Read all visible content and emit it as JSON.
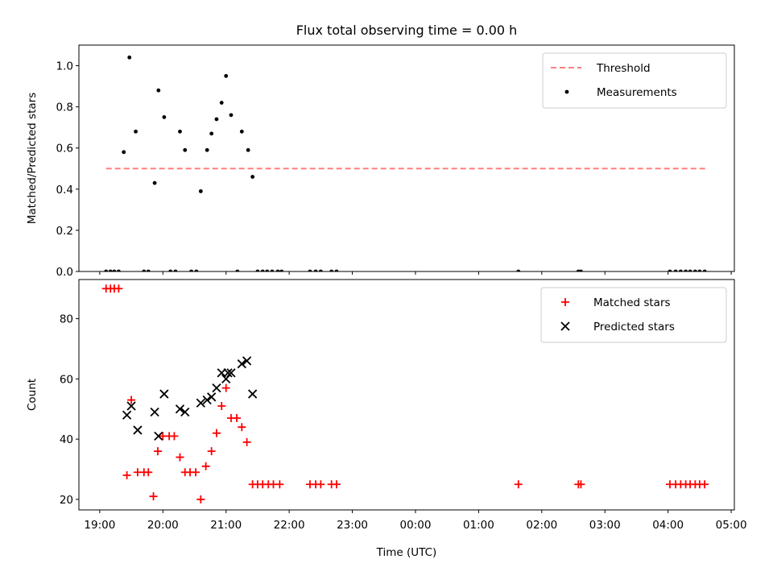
{
  "chart_data": {
    "type": "scatter",
    "title": "Flux total observing time = 0.00 h",
    "xlabel": "Time (UTC)",
    "x_tick_labels": [
      "19:00",
      "20:00",
      "21:00",
      "22:00",
      "23:00",
      "00:00",
      "01:00",
      "02:00",
      "03:00",
      "04:00",
      "05:00"
    ],
    "x_ticks_hours": [
      19,
      20,
      21,
      22,
      23,
      24,
      25,
      26,
      27,
      28,
      29
    ],
    "xlim_hours": [
      18.67,
      29.05
    ],
    "panels": [
      {
        "ylabel": "Matched/Predicted stars",
        "ylim": [
          0,
          1.1
        ],
        "yticks": [
          0.0,
          0.2,
          0.4,
          0.6,
          0.8,
          1.0
        ],
        "ytick_labels": [
          "0.0",
          "0.2",
          "0.4",
          "0.6",
          "0.8",
          "1.0"
        ],
        "legend_position": "upper right",
        "threshold": {
          "name": "Threshold",
          "value": 0.5,
          "x_range": [
            19.1,
            28.6
          ],
          "color": "#ff7f7f",
          "style": "dashed"
        },
        "series": [
          {
            "name": "Measurements",
            "marker": "dot",
            "color": "#000000",
            "points": [
              [
                19.1,
                0
              ],
              [
                19.17,
                0
              ],
              [
                19.23,
                0
              ],
              [
                19.3,
                0
              ],
              [
                19.38,
                0.58
              ],
              [
                19.47,
                1.04
              ],
              [
                19.57,
                0.68
              ],
              [
                19.7,
                0
              ],
              [
                19.77,
                0
              ],
              [
                19.87,
                0.43
              ],
              [
                19.93,
                0.88
              ],
              [
                20.02,
                0.75
              ],
              [
                20.12,
                0
              ],
              [
                20.2,
                0
              ],
              [
                20.27,
                0.68
              ],
              [
                20.35,
                0.59
              ],
              [
                20.45,
                0
              ],
              [
                20.53,
                0
              ],
              [
                20.6,
                0.39
              ],
              [
                20.7,
                0.59
              ],
              [
                20.77,
                0.67
              ],
              [
                20.85,
                0.74
              ],
              [
                20.93,
                0.82
              ],
              [
                21.0,
                0.95
              ],
              [
                21.08,
                0.76
              ],
              [
                21.18,
                0
              ],
              [
                21.25,
                0.68
              ],
              [
                21.35,
                0.59
              ],
              [
                21.42,
                0.46
              ],
              [
                21.5,
                0
              ],
              [
                21.58,
                0
              ],
              [
                21.65,
                0
              ],
              [
                21.73,
                0
              ],
              [
                21.82,
                0
              ],
              [
                21.88,
                0
              ],
              [
                22.33,
                0
              ],
              [
                22.42,
                0
              ],
              [
                22.5,
                0
              ],
              [
                22.67,
                0
              ],
              [
                22.75,
                0
              ],
              [
                25.63,
                0
              ],
              [
                26.58,
                0
              ],
              [
                26.62,
                0
              ],
              [
                28.03,
                0
              ],
              [
                28.12,
                0
              ],
              [
                28.2,
                0
              ],
              [
                28.28,
                0
              ],
              [
                28.35,
                0
              ],
              [
                28.43,
                0
              ],
              [
                28.5,
                0
              ],
              [
                28.58,
                0
              ]
            ]
          }
        ]
      },
      {
        "ylabel": "Count",
        "ylim": [
          16.5,
          93
        ],
        "yticks": [
          20,
          40,
          60,
          80
        ],
        "ytick_labels": [
          "20",
          "40",
          "60",
          "80"
        ],
        "legend_position": "upper right",
        "series": [
          {
            "name": "Matched stars",
            "marker": "plus",
            "color": "#ff0000",
            "points": [
              [
                19.1,
                90
              ],
              [
                19.17,
                90
              ],
              [
                19.23,
                90
              ],
              [
                19.3,
                90
              ],
              [
                19.43,
                28
              ],
              [
                19.5,
                53
              ],
              [
                19.6,
                29
              ],
              [
                19.7,
                29
              ],
              [
                19.77,
                29
              ],
              [
                19.85,
                21
              ],
              [
                19.92,
                36
              ],
              [
                20.0,
                41
              ],
              [
                20.1,
                41
              ],
              [
                20.18,
                41
              ],
              [
                20.27,
                34
              ],
              [
                20.35,
                29
              ],
              [
                20.43,
                29
              ],
              [
                20.52,
                29
              ],
              [
                20.6,
                20
              ],
              [
                20.68,
                31
              ],
              [
                20.77,
                36
              ],
              [
                20.85,
                42
              ],
              [
                20.93,
                51
              ],
              [
                21.0,
                57
              ],
              [
                21.08,
                47
              ],
              [
                21.17,
                47
              ],
              [
                21.25,
                44
              ],
              [
                21.33,
                39
              ],
              [
                21.42,
                25
              ],
              [
                21.5,
                25
              ],
              [
                21.58,
                25
              ],
              [
                21.67,
                25
              ],
              [
                21.75,
                25
              ],
              [
                21.85,
                25
              ],
              [
                22.33,
                25
              ],
              [
                22.42,
                25
              ],
              [
                22.5,
                25
              ],
              [
                22.67,
                25
              ],
              [
                22.75,
                25
              ],
              [
                25.63,
                25
              ],
              [
                26.58,
                25
              ],
              [
                26.62,
                25
              ],
              [
                28.03,
                25
              ],
              [
                28.12,
                25
              ],
              [
                28.2,
                25
              ],
              [
                28.28,
                25
              ],
              [
                28.35,
                25
              ],
              [
                28.43,
                25
              ],
              [
                28.5,
                25
              ],
              [
                28.58,
                25
              ]
            ]
          },
          {
            "name": "Predicted stars",
            "marker": "x",
            "color": "#000000",
            "points": [
              [
                19.43,
                48
              ],
              [
                19.5,
                51
              ],
              [
                19.6,
                43
              ],
              [
                19.87,
                49
              ],
              [
                19.93,
                41
              ],
              [
                20.02,
                55
              ],
              [
                20.27,
                50
              ],
              [
                20.35,
                49
              ],
              [
                20.6,
                52
              ],
              [
                20.7,
                53
              ],
              [
                20.77,
                54
              ],
              [
                20.85,
                57
              ],
              [
                20.93,
                62
              ],
              [
                21.0,
                60
              ],
              [
                21.03,
                62
              ],
              [
                21.08,
                62
              ],
              [
                21.25,
                65
              ],
              [
                21.33,
                66
              ],
              [
                21.42,
                55
              ]
            ]
          }
        ]
      }
    ]
  }
}
